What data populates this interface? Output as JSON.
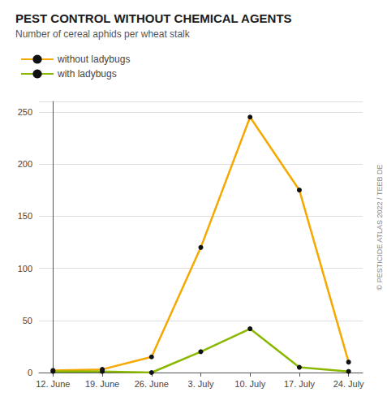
{
  "chart_data": {
    "type": "line",
    "title": "PEST CONTROL WITHOUT CHEMICAL AGENTS",
    "subtitle": "Number of cereal aphids per wheat stalk",
    "annotations": [
      "© PESTICIDE ATLAS 2022 / TEEB DE"
    ],
    "x": [
      0,
      7,
      14,
      21,
      28,
      35,
      42
    ],
    "series": [
      {
        "name": "without ladybugs",
        "color": "#f5a800",
        "values": [
          2,
          3,
          15,
          120,
          245,
          175,
          10
        ]
      },
      {
        "name": "with ladybugs",
        "color": "#8ab800",
        "values": [
          1,
          1,
          0,
          20,
          42,
          5,
          1
        ]
      }
    ],
    "xlim": [
      -2,
      44
    ],
    "xticks": [
      {
        "value": 0,
        "label": "12. June"
      },
      {
        "value": 7,
        "label": "19. June"
      },
      {
        "value": 14,
        "label": "26. June"
      },
      {
        "value": 21,
        "label": "3. July"
      },
      {
        "value": 28,
        "label": "10. July"
      },
      {
        "value": 35,
        "label": "17. July"
      },
      {
        "value": 42,
        "label": "24. July"
      }
    ],
    "ylim": [
      0,
      260
    ],
    "yticks": [
      0,
      50,
      100,
      150,
      200,
      250
    ],
    "grid": true,
    "legend": "top-left",
    "marker": "circle"
  }
}
